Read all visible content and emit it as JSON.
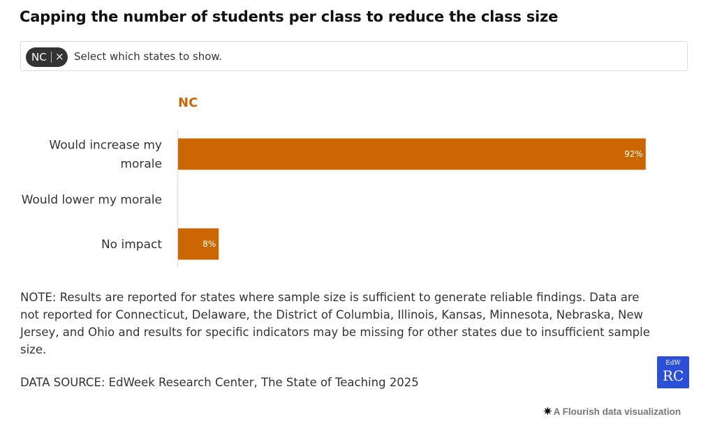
{
  "title": "Capping the number of students per class to reduce the class size",
  "filter": {
    "selected": [
      "NC"
    ],
    "remove_glyph": "×",
    "placeholder": "Select which states to show."
  },
  "chart_data": {
    "type": "bar",
    "orientation": "horizontal",
    "subchart_title": "NC",
    "categories": [
      "Would increase my morale",
      "Would lower my morale",
      "No impact"
    ],
    "category_lines": [
      [
        "Would increase my",
        "morale"
      ],
      [
        "Would lower my morale"
      ],
      [
        "No impact"
      ]
    ],
    "values": [
      92,
      0,
      8
    ],
    "value_labels": [
      "92%",
      "",
      "8%"
    ],
    "xlim": [
      0,
      100
    ],
    "bar_color": "#cc6600",
    "grid": false
  },
  "note": "NOTE: Results are reported for states where sample size is sufficient to generate reliable findings. Data are not reported for Connecticut, Delaware, the District of Columbia, Illinois, Kansas, Minnesota, Nebraska, New Jersey, and Ohio and results for specific indicators may be missing for other states due to insufficient sample size.",
  "source": "DATA SOURCE: EdWeek Research Center, The State of Teaching 2025",
  "logo": {
    "top": "EdW",
    "bottom": "RC"
  },
  "footer": {
    "star_glyph": "✷",
    "text": "A Flourish data visualization"
  },
  "colors": {
    "accent": "#cc6600",
    "logo_bg": "#2b4fd6",
    "chip_bg": "#333333"
  }
}
